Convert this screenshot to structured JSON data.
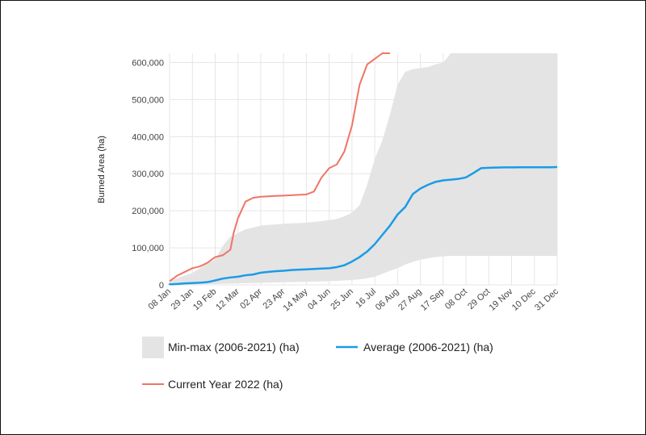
{
  "chart_data": {
    "type": "line",
    "ylabel": "Burned Area (ha)",
    "xlabel": "",
    "ylim": [
      0,
      625000
    ],
    "y_ticks": [
      0,
      100000,
      200000,
      300000,
      400000,
      500000,
      600000
    ],
    "y_tick_labels": [
      "0",
      "100,000",
      "200,000",
      "300,000",
      "400,000",
      "500,000",
      "600,000"
    ],
    "x_tick_labels": [
      "08 Jan",
      "29 Jan",
      "19 Feb",
      "12 Mar",
      "02 Apr",
      "23 Apr",
      "14 May",
      "04 Jun",
      "25 Jun",
      "16 Jul",
      "06 Aug",
      "27 Aug",
      "17 Sep",
      "08 Oct",
      "29 Oct",
      "19 Nov",
      "10 Dec",
      "31 Dec"
    ],
    "x_unit": "day of year",
    "x_tick_days": [
      8,
      29,
      50,
      71,
      92,
      113,
      134,
      155,
      176,
      197,
      218,
      239,
      260,
      281,
      302,
      323,
      344,
      365
    ],
    "grid": true,
    "legend_position": "bottom",
    "colors": {
      "minmax": "#e4e4e4",
      "average": "#1a9be6",
      "current": "#f07466",
      "grid": "#e6e6e6"
    },
    "series": [
      {
        "name": "Min-max (2006-2021) (ha)",
        "kind": "band",
        "x": [
          1,
          8,
          15,
          22,
          29,
          36,
          43,
          50,
          57,
          64,
          71,
          78,
          85,
          92,
          99,
          106,
          113,
          120,
          127,
          134,
          141,
          148,
          155,
          162,
          169,
          176,
          183,
          190,
          197,
          204,
          211,
          218,
          225,
          232,
          239,
          246,
          253,
          260,
          267,
          274,
          281,
          288,
          295,
          302,
          309,
          316,
          323,
          330,
          337,
          344,
          351,
          358,
          365
        ],
        "min": [
          0,
          0,
          0,
          0,
          1000,
          1500,
          2000,
          2500,
          3000,
          3500,
          4000,
          4500,
          5000,
          5500,
          6000,
          6500,
          7000,
          7500,
          8000,
          8500,
          9000,
          9500,
          10000,
          11000,
          12000,
          13000,
          15000,
          18000,
          22000,
          30000,
          38000,
          45000,
          55000,
          62000,
          68000,
          72000,
          75000,
          77000,
          78000,
          78000,
          78000,
          78000,
          78000,
          78000,
          78000,
          78000,
          78000,
          78000,
          78000,
          78000,
          78000,
          78000,
          78000
        ],
        "max": [
          5000,
          10000,
          18000,
          25000,
          32000,
          45000,
          58000,
          68000,
          105000,
          130000,
          140000,
          150000,
          155000,
          160000,
          162000,
          163000,
          165000,
          166000,
          167000,
          168000,
          170000,
          172000,
          175000,
          178000,
          185000,
          195000,
          215000,
          270000,
          340000,
          390000,
          460000,
          540000,
          575000,
          582000,
          585000,
          588000,
          595000,
          600000,
          625000,
          625000,
          625000,
          625000,
          625000,
          625000,
          625000,
          625000,
          625000,
          625000,
          625000,
          625000,
          625000,
          625000,
          625000
        ]
      },
      {
        "name": "Average (2006-2021) (ha)",
        "kind": "line",
        "x": [
          1,
          8,
          15,
          22,
          29,
          36,
          43,
          50,
          57,
          64,
          71,
          78,
          85,
          92,
          99,
          106,
          113,
          120,
          127,
          134,
          141,
          148,
          155,
          162,
          169,
          176,
          183,
          190,
          197,
          204,
          211,
          218,
          225,
          232,
          239,
          246,
          253,
          260,
          267,
          274,
          281,
          288,
          295,
          302,
          309,
          316,
          323,
          330,
          337,
          344,
          351,
          358,
          365
        ],
        "values": [
          0,
          1500,
          2500,
          4000,
          5000,
          6000,
          7500,
          12000,
          17000,
          20000,
          22000,
          26000,
          28000,
          33000,
          35000,
          37000,
          38000,
          40000,
          41000,
          42000,
          43000,
          44000,
          45000,
          48000,
          53000,
          63000,
          75000,
          90000,
          110000,
          135000,
          160000,
          190000,
          210000,
          245000,
          260000,
          270000,
          278000,
          282000,
          284000,
          286000,
          290000,
          302000,
          315000,
          316000,
          316500,
          317000,
          317000,
          317500,
          317500,
          317500,
          317500,
          317500,
          318000
        ]
      },
      {
        "name": "Current Year 2022 (ha)",
        "kind": "line",
        "x": [
          1,
          8,
          15,
          22,
          29,
          36,
          43,
          50,
          57,
          64,
          67,
          71,
          78,
          85,
          92,
          99,
          106,
          113,
          120,
          127,
          134,
          141,
          148,
          155,
          162,
          169,
          176,
          183,
          190,
          197,
          204,
          211
        ],
        "values": [
          10000,
          10000,
          25000,
          35000,
          45000,
          50000,
          60000,
          75000,
          80000,
          95000,
          140000,
          180000,
          225000,
          235000,
          238000,
          239000,
          240000,
          241000,
          242000,
          243000,
          244000,
          252000,
          290000,
          315000,
          325000,
          360000,
          430000,
          540000,
          595000,
          610000,
          625000,
          625000
        ]
      }
    ]
  }
}
